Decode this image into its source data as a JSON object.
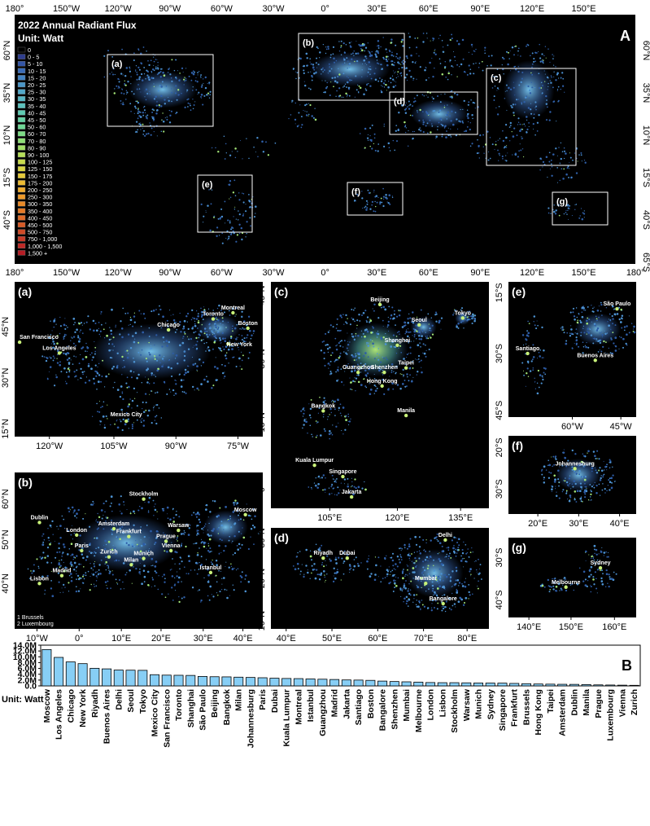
{
  "world": {
    "title_line1": "2022 Annual Radiant Flux",
    "title_line2": "Unit: Watt",
    "panel_label": "A",
    "top_lon_ticks": [
      "180°",
      "150°W",
      "120°W",
      "90°W",
      "60°W",
      "30°W",
      "0°",
      "30°E",
      "60°E",
      "90°E",
      "120°E",
      "150°E"
    ],
    "bottom_lon_ticks": [
      "180°",
      "150°W",
      "120°W",
      "90°W",
      "60°W",
      "30°W",
      "0°",
      "30°E",
      "60°E",
      "90°E",
      "120°E",
      "150°E",
      "180°"
    ],
    "left_lat_ticks": [
      "60°N",
      "35°N",
      "10°N",
      "15°S",
      "40°S"
    ],
    "right_lat_ticks": [
      "60°N",
      "35°N",
      "10°N",
      "15°S",
      "40°S",
      "65°S"
    ],
    "boxes": [
      "(a)",
      "(b)",
      "(c)",
      "(d)",
      "(e)",
      "(f)",
      "(g)"
    ],
    "legend": [
      {
        "label": "0",
        "color": "#000000"
      },
      {
        "label": "0 - 5",
        "color": "#2f3e8f"
      },
      {
        "label": "5  - 10",
        "color": "#3455a6"
      },
      {
        "label": "10 - 15",
        "color": "#3b6cb8"
      },
      {
        "label": "15 - 20",
        "color": "#4382c2"
      },
      {
        "label": "20 - 25",
        "color": "#4b96c7"
      },
      {
        "label": "25 - 30",
        "color": "#52a8c9"
      },
      {
        "label": "30 - 35",
        "color": "#57b6c4"
      },
      {
        "label": "35 - 40",
        "color": "#5cc2bd"
      },
      {
        "label": "40 - 45",
        "color": "#5fcbb2"
      },
      {
        "label": "45 - 50",
        "color": "#64d2a4"
      },
      {
        "label": "50 - 60",
        "color": "#6fd896"
      },
      {
        "label": "60 - 70",
        "color": "#7ddc86"
      },
      {
        "label": "70 - 80",
        "color": "#8fdf76"
      },
      {
        "label": "80 - 90",
        "color": "#a2e067"
      },
      {
        "label": "90 - 100",
        "color": "#b6df59"
      },
      {
        "label": "100 - 125",
        "color": "#c8db4c"
      },
      {
        "label": "125 - 150",
        "color": "#d8d442"
      },
      {
        "label": "150 - 175",
        "color": "#e4c93a"
      },
      {
        "label": "175 - 200",
        "color": "#ecbb33"
      },
      {
        "label": "200 - 250",
        "color": "#eeab2e"
      },
      {
        "label": "250 - 300",
        "color": "#ed9a2a"
      },
      {
        "label": "300 - 350",
        "color": "#e98a28"
      },
      {
        "label": "350 - 400",
        "color": "#e47a27"
      },
      {
        "label": "400 - 450",
        "color": "#de6a27"
      },
      {
        "label": "450 - 500",
        "color": "#d75a27"
      },
      {
        "label": "500 - 750",
        "color": "#cf4a27"
      },
      {
        "label": "750 - 1,000",
        "color": "#c73a27"
      },
      {
        "label": "1,000 - 1,500",
        "color": "#bf2a27"
      },
      {
        "label": "1,500 +",
        "color": "#b51d25"
      }
    ]
  },
  "panels": {
    "a": {
      "label": "(a)",
      "x_ticks": [
        "120°W",
        "105°W",
        "90°W",
        "75°W"
      ],
      "y_ticks": [
        "45°N",
        "30°N",
        "15°N"
      ],
      "cities": [
        "Montreal",
        "Toronto",
        "Chicago",
        "Boston",
        "San Francisco",
        "New York",
        "Los Angeles",
        "Mexico City"
      ]
    },
    "b": {
      "label": "(b)",
      "x_ticks": [
        "10°W",
        "0°",
        "10°E",
        "20°E",
        "30°E",
        "40°E"
      ],
      "y_ticks": [
        "60°N",
        "50°N",
        "40°N"
      ],
      "cities": [
        "Stockholm",
        "Moscow",
        "Dublin",
        "London",
        "Amsterdam",
        "Warsaw",
        "Frankfurt",
        "Prague",
        "Paris",
        "Vienna",
        "Zurich",
        "Munich",
        "Milan",
        "Madrid",
        "Istanbul",
        "Lisbon"
      ],
      "notes": [
        "1 Brussels",
        "2 Luxembourg"
      ]
    },
    "c": {
      "label": "(c)",
      "x_ticks": [
        "105°E",
        "120°E",
        "135°E"
      ],
      "y_ticks": [
        "45°N",
        "30°N",
        "15°N",
        "0°"
      ],
      "cities": [
        "Beijing",
        "Seoul",
        "Tokyo",
        "Shanghai",
        "Taipei",
        "Guangzhou",
        "Shenzhen",
        "Hong Kong",
        "Bangkok",
        "Manila",
        "Kuala Lumpur",
        "Singapore",
        "Jakarta"
      ]
    },
    "d": {
      "label": "(d)",
      "x_ticks": [
        "40°E",
        "50°E",
        "60°E",
        "70°E",
        "80°E"
      ],
      "y_ticks": [
        "30°N",
        "20°N",
        "10°N"
      ],
      "cities": [
        "Delhi",
        "Riyadh",
        "Dubai",
        "Mumbai",
        "Bangalore"
      ]
    },
    "e": {
      "label": "(e)",
      "x_ticks": [
        "60°W",
        "45°W"
      ],
      "y_ticks": [
        "15°S",
        "30°S",
        "45°S"
      ],
      "cities": [
        "São Paulo",
        "Santiago",
        "Buenos Aires"
      ]
    },
    "f": {
      "label": "(f)",
      "x_ticks": [
        "20°E",
        "30°E",
        "40°E"
      ],
      "y_ticks": [
        "20°S",
        "30°S"
      ],
      "cities": [
        "Johannesburg"
      ]
    },
    "g": {
      "label": "(g)",
      "x_ticks": [
        "140°E",
        "150°E",
        "160°E"
      ],
      "y_ticks": [
        "30°S",
        "40°S"
      ],
      "cities": [
        "Sydney",
        "Melbourne"
      ]
    }
  },
  "chart_data": {
    "type": "bar",
    "panel_label": "B",
    "unit_label": "Unit: Watt",
    "ylim": [
      0,
      14000000
    ],
    "y_ticks": [
      "0.0",
      "2.0M",
      "4.0M",
      "6.0M",
      "8.0M",
      "10.0M",
      "12.0M",
      "14.0M"
    ],
    "bar_color": "#87cef5",
    "categories": [
      "Moscow",
      "Los Angeles",
      "Chicago",
      "New York",
      "Riyadh",
      "Buenos Aires",
      "Delhi",
      "Seoul",
      "Tokyo",
      "Mexico City",
      "San Francisco",
      "Toronto",
      "Shanghai",
      "São Paulo",
      "Beijing",
      "Bangkok",
      "Milan",
      "Johannesburg",
      "Paris",
      "Dubai",
      "Kuala Lumpur",
      "Montreal",
      "Istanbul",
      "Guangzhou",
      "Madrid",
      "Jakarta",
      "Santiago",
      "Boston",
      "Bangalore",
      "Shenzhen",
      "Mumbai",
      "Melbourne",
      "London",
      "Lisbon",
      "Stockholm",
      "Warsaw",
      "Munich",
      "Sydney",
      "Singapore",
      "Frankfurt",
      "Brussels",
      "Hong Kong",
      "Taipei",
      "Amsterdam",
      "Dublin",
      "Manila",
      "Prague",
      "Luxembourg",
      "Vienna",
      "Zurich"
    ],
    "values": [
      12500000,
      9800000,
      8250000,
      7650000,
      6050000,
      5850000,
      5450000,
      5400000,
      5350000,
      3850000,
      3700000,
      3650000,
      3600000,
      3250000,
      3150000,
      3100000,
      3000000,
      2900000,
      2800000,
      2650000,
      2550000,
      2500000,
      2400000,
      2300000,
      2200000,
      2050000,
      2000000,
      1900000,
      1650000,
      1500000,
      1400000,
      1300000,
      1150000,
      1100000,
      1100000,
      1050000,
      1000000,
      980000,
      950000,
      850000,
      750000,
      650000,
      600000,
      550000,
      520000,
      450000,
      350000,
      300000,
      250000,
      200000
    ]
  }
}
